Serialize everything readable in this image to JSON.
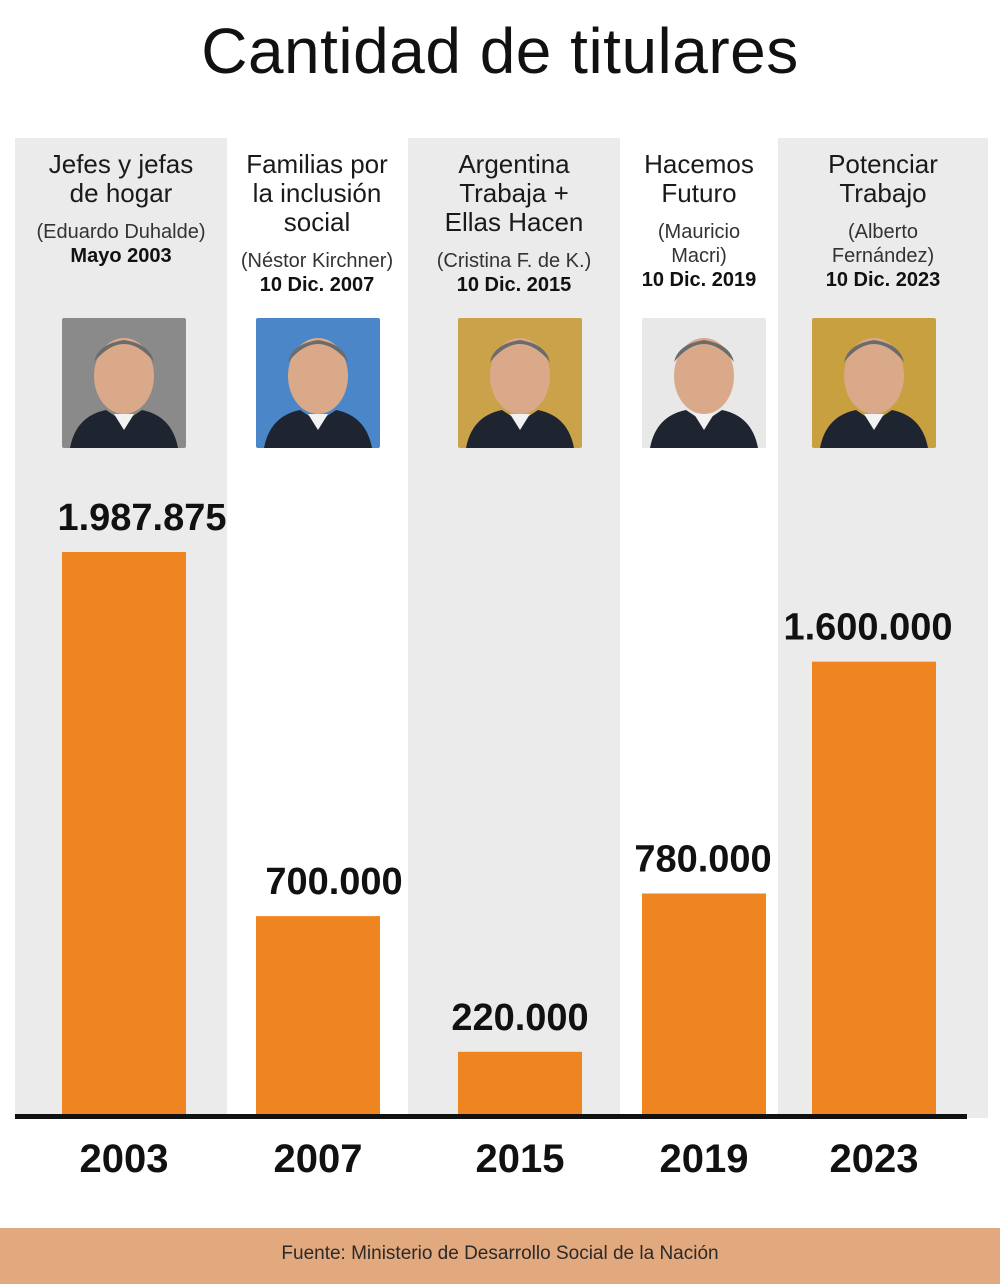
{
  "page": {
    "title": "Cantidad de titulares",
    "source": "Fuente: Ministerio de Desarrollo Social de la Nación"
  },
  "columns": [
    {
      "program": [
        "Jefes y jefas",
        "de hogar"
      ],
      "person": [
        "(Eduardo Duhalde)"
      ],
      "date": "Mayo 2003",
      "photo_icon": "portrait-icon",
      "photo_bg": "#8a8a8a",
      "year": "2003",
      "value_label": "1.987.875"
    },
    {
      "program": [
        "Familias por",
        "la inclusión",
        "social"
      ],
      "person": [
        "(Néstor Kirchner)"
      ],
      "date": "10 Dic. 2007",
      "photo_icon": "portrait-icon",
      "photo_bg": "#4a86c8",
      "year": "2007",
      "value_label": "700.000"
    },
    {
      "program": [
        "Argentina",
        "Trabaja +",
        "Ellas Hacen"
      ],
      "person": [
        "(Cristina F. de K.)"
      ],
      "date": "10 Dic. 2015",
      "photo_icon": "portrait-icon",
      "photo_bg": "#c9a24a",
      "year": "2015",
      "value_label": "220.000"
    },
    {
      "program": [
        "Hacemos",
        "Futuro"
      ],
      "person": [
        "(Mauricio",
        "Macri)"
      ],
      "date": "10 Dic. 2019",
      "photo_icon": "portrait-icon",
      "photo_bg": "#e8e8e8",
      "year": "2019",
      "value_label": "780.000"
    },
    {
      "program": [
        "Potenciar",
        "Trabajo"
      ],
      "person": [
        "(Alberto",
        "Fernández)"
      ],
      "date": "10 Dic. 2023",
      "photo_icon": "portrait-icon",
      "photo_bg": "#c8a040",
      "year": "2023",
      "value_label": "1.600.000"
    }
  ],
  "chart_data": {
    "type": "bar",
    "title": "Cantidad de titulares",
    "categories": [
      "2003",
      "2007",
      "2015",
      "2019",
      "2023"
    ],
    "values": [
      1987875,
      700000,
      220000,
      780000,
      1600000
    ],
    "value_labels": [
      "1.987.875",
      "700.000",
      "220.000",
      "780.000",
      "1.600.000"
    ],
    "bar_color": "#ef8520",
    "ylim": [
      0,
      2000000
    ],
    "grid": false
  }
}
